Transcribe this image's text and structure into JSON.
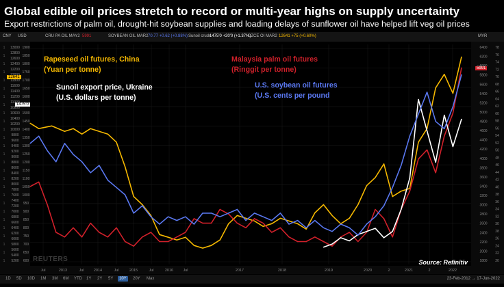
{
  "header": {
    "title": "Global edible oil prices stretch to record or multi-year highs on supply uncertainty",
    "subtitle": "Export restrictions of palm oil, drought-hit soybean supplies and loading delays of sunflower oil have helped lift veg oil prices"
  },
  "legend_bar": {
    "items": [
      {
        "label": "CNY",
        "value": ""
      },
      {
        "label": "USD",
        "value": ""
      },
      {
        "label": "CRU PA OIL MAY2",
        "value": "5991"
      },
      {
        "label": "SOYBEAN OIL MAR2",
        "value": "70.77 +0.62 (+0.88%)"
      },
      {
        "label": "Sunoil crude",
        "value": "1475'0 +20'0 (+1.37%)"
      },
      {
        "label": "CZCE OI MAR2",
        "value": "12641 +75 (+0.60%)"
      },
      {
        "label": "MYR",
        "value": ""
      }
    ]
  },
  "annotations": {
    "rapeseed": {
      "line1": "Rapeseed oil futures, China",
      "line2": "(Yuan per tonne)",
      "color": "#f5b800"
    },
    "palm": {
      "line1": "Malaysia palm oil futures",
      "line2": "(Ringgit per tonne)",
      "color": "#d0202a"
    },
    "sunoil": {
      "line1": "Sunoil export price, Ukraine",
      "line2": "(U.S. dollars per tonne)",
      "color": "#ffffff"
    },
    "soybean": {
      "line1": "U.S. soybean oil futures",
      "line2": "(U.S. cents per pound",
      "color": "#5a78f0"
    }
  },
  "source": "Source: Refinitiv",
  "watermark": "REUTERS",
  "price_tags": {
    "rapeseed_current": "12641",
    "sunoil_current": "1475'0",
    "palm_current": "5991"
  },
  "range_bar": {
    "buttons": [
      "1D",
      "5D",
      "10D",
      "1M",
      "3M",
      "6M",
      "YTD",
      "1Y",
      "2Y",
      "5Y",
      "10Y",
      "20Y",
      "Max"
    ],
    "active": "10Y",
    "date_range": "23-Feb-2012 → 17-Jun-2022"
  },
  "colors": {
    "rapeseed": "#f5b800",
    "palm": "#d0202a",
    "sunoil": "#ffffff",
    "soybean": "#5a78f0",
    "background": "#000000"
  },
  "chart_data": {
    "type": "line",
    "x_tick_labels": [
      "Jul",
      "2013",
      "Jul",
      "2014",
      "Jul",
      "2015",
      "Jul",
      "2016",
      "Jul",
      "2017",
      "2018",
      "2019",
      "2020",
      "2",
      "2021",
      "2",
      "2022"
    ],
    "left_axis_1": {
      "ticks": [
        "13000",
        "12800",
        "12600",
        "12400",
        "12200",
        "12000",
        "11800",
        "11600",
        "11400",
        "11200",
        "11000",
        "10800",
        "10600",
        "10400",
        "10200",
        "10000",
        "9800",
        "9600",
        "9400",
        "9200",
        "9000",
        "8800",
        "8600",
        "8400",
        "8200",
        "8000",
        "7800",
        "7600",
        "7400",
        "7200",
        "7000",
        "6800",
        "6600",
        "6400",
        "6200",
        "6000",
        "5800",
        "5600",
        "5400",
        "5200"
      ],
      "ylim": [
        5000,
        13100
      ]
    },
    "left_axis_2": {
      "ticks": [
        "1900",
        "1850",
        "1800",
        "1750",
        "1700",
        "1650",
        "1600",
        "1550",
        "1500",
        "1450",
        "1400",
        "1350",
        "1300",
        "1250",
        "1200",
        "1150",
        "1100",
        "1050",
        "1000",
        "950",
        "900",
        "850",
        "800",
        "750",
        "700",
        "650",
        "600"
      ],
      "ylim": [
        550,
        1950
      ]
    },
    "left_axis_3": {
      "ticks": [
        "1",
        "1",
        "1",
        "1",
        "1",
        "1",
        "1",
        "1",
        "1",
        "1",
        "1",
        "1",
        "1",
        "1",
        "1",
        "1",
        "1",
        "1",
        "1",
        "1",
        "1",
        "1",
        "1",
        "1",
        "1",
        "1",
        "1"
      ]
    },
    "right_axis_1": {
      "ticks": [
        "6400",
        "6200",
        "6000",
        "5800",
        "5600",
        "5400",
        "5200",
        "5000",
        "4800",
        "4600",
        "4400",
        "4200",
        "4000",
        "3800",
        "3600",
        "3400",
        "3200",
        "3000",
        "2800",
        "2600",
        "2400",
        "2200",
        "2000",
        "1800"
      ],
      "ylim": [
        1700,
        6500
      ]
    },
    "right_axis_2": {
      "ticks": [
        "78",
        "76",
        "74",
        "72",
        "70",
        "68",
        "66",
        "64",
        "62",
        "60",
        "58",
        "56",
        "54",
        "52",
        "50",
        "48",
        "46",
        "44",
        "42",
        "40",
        "38",
        "36",
        "34",
        "32",
        "30",
        "28",
        "26",
        "24",
        "22",
        "20"
      ],
      "ylim": [
        19,
        79
      ]
    },
    "series": [
      {
        "name": "Rapeseed oil futures, China",
        "axis": "left_axis_1",
        "t": [
          0,
          0.02,
          0.05,
          0.08,
          0.1,
          0.12,
          0.14,
          0.16,
          0.18,
          0.2,
          0.22,
          0.24,
          0.26,
          0.28,
          0.3,
          0.32,
          0.34,
          0.36,
          0.38,
          0.4,
          0.42,
          0.44,
          0.46,
          0.48,
          0.5,
          0.52,
          0.54,
          0.56,
          0.58,
          0.6,
          0.62,
          0.64,
          0.66,
          0.68,
          0.7,
          0.72,
          0.74,
          0.76,
          0.78,
          0.8,
          0.82,
          0.84,
          0.86,
          0.88,
          0.9,
          0.92,
          0.94,
          0.96,
          0.98,
          1.0
        ],
        "values": [
          10200,
          10000,
          10100,
          9900,
          10000,
          9800,
          10000,
          9900,
          9800,
          9500,
          8600,
          7500,
          7200,
          6800,
          6100,
          6000,
          5900,
          6000,
          5700,
          5600,
          5700,
          5900,
          6500,
          6800,
          6700,
          6600,
          6400,
          6500,
          6700,
          6600,
          6500,
          6300,
          6900,
          7200,
          6800,
          6500,
          6700,
          7200,
          7900,
          8200,
          8700,
          7500,
          7700,
          7800,
          9500,
          10000,
          11500,
          12000,
          11300,
          12641
        ]
      },
      {
        "name": "Malaysia palm oil futures",
        "axis": "right_axis_1",
        "t": [
          0,
          0.02,
          0.04,
          0.06,
          0.08,
          0.1,
          0.12,
          0.14,
          0.16,
          0.18,
          0.2,
          0.22,
          0.24,
          0.26,
          0.28,
          0.3,
          0.32,
          0.34,
          0.36,
          0.38,
          0.4,
          0.42,
          0.44,
          0.46,
          0.48,
          0.5,
          0.52,
          0.54,
          0.56,
          0.58,
          0.6,
          0.62,
          0.64,
          0.66,
          0.68,
          0.7,
          0.72,
          0.74,
          0.76,
          0.78,
          0.8,
          0.82,
          0.84,
          0.86,
          0.88,
          0.9,
          0.92,
          0.94,
          0.96,
          0.98,
          1.0
        ],
        "values": [
          3400,
          3500,
          3000,
          2400,
          2300,
          2500,
          2300,
          2600,
          2400,
          2300,
          2500,
          2200,
          2100,
          2300,
          2400,
          2200,
          2200,
          2300,
          2400,
          2700,
          2600,
          2600,
          2900,
          2800,
          2600,
          2500,
          2700,
          2600,
          2400,
          2500,
          2300,
          2200,
          2200,
          2300,
          2200,
          2100,
          2300,
          2400,
          2200,
          2400,
          2900,
          2700,
          2300,
          2900,
          3300,
          4000,
          4200,
          3700,
          4500,
          5000,
          5991
        ]
      },
      {
        "name": "Sunoil export price, Ukraine",
        "axis": "left_axis_2",
        "t": [
          0.68,
          0.7,
          0.72,
          0.74,
          0.76,
          0.78,
          0.8,
          0.82,
          0.84,
          0.86,
          0.88,
          0.9,
          0.92,
          0.94,
          0.96,
          0.98,
          1.0
        ],
        "values": [
          660,
          680,
          720,
          700,
          740,
          760,
          780,
          720,
          760,
          900,
          1100,
          1600,
          1400,
          1200,
          1500,
          1300,
          1475
        ]
      },
      {
        "name": "U.S. soybean oil futures",
        "axis": "right_axis_2",
        "t": [
          0,
          0.02,
          0.04,
          0.06,
          0.08,
          0.1,
          0.12,
          0.14,
          0.16,
          0.18,
          0.2,
          0.22,
          0.24,
          0.26,
          0.28,
          0.3,
          0.32,
          0.34,
          0.36,
          0.38,
          0.4,
          0.42,
          0.44,
          0.46,
          0.48,
          0.5,
          0.52,
          0.54,
          0.56,
          0.58,
          0.6,
          0.62,
          0.64,
          0.66,
          0.68,
          0.7,
          0.72,
          0.74,
          0.76,
          0.78,
          0.8,
          0.82,
          0.84,
          0.86,
          0.88,
          0.9,
          0.92,
          0.94,
          0.96,
          0.98,
          1.0
        ],
        "values": [
          52,
          54,
          50,
          47,
          52,
          49,
          47,
          44,
          46,
          42,
          40,
          38,
          33,
          35,
          32,
          30,
          32,
          31,
          32,
          30,
          33,
          33,
          32,
          33,
          34,
          31,
          33,
          32,
          31,
          33,
          30,
          31,
          29,
          31,
          29,
          28,
          30,
          29,
          27,
          30,
          32,
          35,
          40,
          46,
          54,
          60,
          66,
          58,
          56,
          62,
          70.77
        ]
      }
    ]
  }
}
